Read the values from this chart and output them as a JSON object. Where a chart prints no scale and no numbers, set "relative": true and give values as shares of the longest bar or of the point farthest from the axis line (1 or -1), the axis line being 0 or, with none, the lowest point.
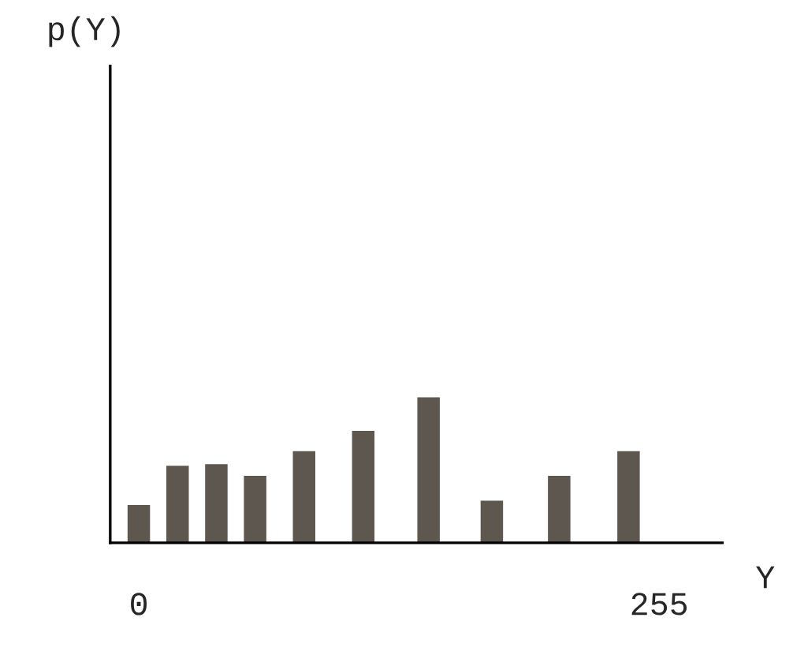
{
  "chart_data": {
    "type": "bar",
    "relative": true,
    "xlabel": "Y",
    "annotations": [
      "p(Y)"
    ],
    "x": [
      0,
      19,
      38,
      57,
      81,
      110,
      142,
      173,
      206,
      240
    ],
    "values": [
      0.26,
      0.53,
      0.54,
      0.46,
      0.63,
      0.77,
      1,
      0.29,
      0.46,
      0.63
    ],
    "color": "#5e574f",
    "xlim": [
      -14,
      286
    ],
    "xticks": [
      0,
      255
    ],
    "tick_labels": "x"
  }
}
